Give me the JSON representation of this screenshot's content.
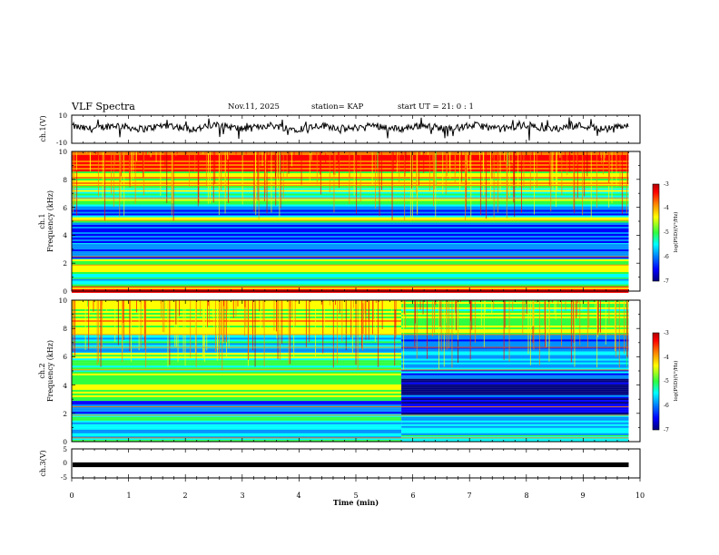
{
  "header": {
    "title": "VLF Spectra",
    "date": "Nov.11, 2025",
    "station": "station= KAP",
    "start_ut": "start  UT =   21: 0  : 1"
  },
  "colors": {
    "spectral": [
      "#00007a",
      "#0000ff",
      "#0090ff",
      "#00ffff",
      "#30ff40",
      "#ffff00",
      "#ff8000",
      "#ff0000",
      "#b00000"
    ],
    "trace": "#000000"
  },
  "chart_data": [
    {
      "type": "line",
      "name": "ch1-waveform",
      "ylabel": "ch.1(V)",
      "ylim": [
        -10,
        10
      ],
      "yticks": [
        "10",
        "-10"
      ],
      "x_range_min": [
        0,
        10
      ],
      "data_extent_min": [
        0,
        9.8
      ],
      "description_levels": {
        "mean": 1.5,
        "amplitude": 2.5
      }
    },
    {
      "type": "heatmap",
      "name": "ch1-spectrogram",
      "xlabel": "",
      "ylabel_channel": "ch.1",
      "ylabel": "Frequency (kHz)",
      "ylim_khz": [
        0,
        10
      ],
      "yticks": [
        "0",
        "2",
        "4",
        "6",
        "8",
        "10"
      ],
      "x_range_min": [
        0,
        10
      ],
      "data_extent_min": [
        0,
        9.8
      ],
      "log_psd_segments": [
        {
          "from_khz": 0,
          "to_khz": 0.4,
          "level": -4.2
        },
        {
          "from_khz": 0.4,
          "to_khz": 1.0,
          "level": -5.3
        },
        {
          "from_khz": 1.0,
          "to_khz": 2.4,
          "level": -5.0
        },
        {
          "from_khz": 2.4,
          "to_khz": 3.5,
          "level": -5.9
        },
        {
          "from_khz": 3.5,
          "to_khz": 5.0,
          "level": -6.1
        },
        {
          "from_khz": 5.0,
          "to_khz": 5.3,
          "level": -4.8
        },
        {
          "from_khz": 5.3,
          "to_khz": 6.2,
          "level": -5.8
        },
        {
          "from_khz": 6.2,
          "to_khz": 7.5,
          "level": -5.2
        },
        {
          "from_khz": 7.5,
          "to_khz": 8.7,
          "level": -4.6
        },
        {
          "from_khz": 8.7,
          "to_khz": 10,
          "level": -3.8
        }
      ],
      "colorbar": {
        "label": "log(PSD)(V²/Hz)",
        "range": [
          -7,
          -3
        ],
        "ticks": [
          "-3",
          "-4",
          "-5",
          "-6",
          "-7"
        ]
      }
    },
    {
      "type": "heatmap",
      "name": "ch2-spectrogram",
      "ylabel_channel": "ch.2",
      "ylabel": "Frequency (kHz)",
      "ylim_khz": [
        0,
        10
      ],
      "yticks": [
        "0",
        "2",
        "4",
        "6",
        "8",
        "10"
      ],
      "x_range_min": [
        0,
        10
      ],
      "data_extent_min": [
        0,
        9.8
      ],
      "regime_change_min": 5.8,
      "log_psd_segments_before": [
        {
          "from_khz": 0,
          "to_khz": 0.5,
          "level": -5.5
        },
        {
          "from_khz": 0.5,
          "to_khz": 2.0,
          "level": -5.6
        },
        {
          "from_khz": 2.0,
          "to_khz": 3.0,
          "level": -6.1
        },
        {
          "from_khz": 3.0,
          "to_khz": 5.2,
          "level": -4.9
        },
        {
          "from_khz": 5.2,
          "to_khz": 6.4,
          "level": -5.1
        },
        {
          "from_khz": 6.4,
          "to_khz": 7.6,
          "level": -5.6
        },
        {
          "from_khz": 7.6,
          "to_khz": 10,
          "level": -4.7
        }
      ],
      "log_psd_segments_after": [
        {
          "from_khz": 0,
          "to_khz": 0.5,
          "level": -5.6
        },
        {
          "from_khz": 0.5,
          "to_khz": 2.0,
          "level": -5.7
        },
        {
          "from_khz": 2.0,
          "to_khz": 3.2,
          "level": -6.4
        },
        {
          "from_khz": 3.2,
          "to_khz": 4.7,
          "level": -6.5
        },
        {
          "from_khz": 4.7,
          "to_khz": 5.6,
          "level": -6.0
        },
        {
          "from_khz": 5.6,
          "to_khz": 6.5,
          "level": -5.6
        },
        {
          "from_khz": 6.5,
          "to_khz": 7.6,
          "level": -5.9
        },
        {
          "from_khz": 7.6,
          "to_khz": 10,
          "level": -4.8
        }
      ],
      "colorbar": {
        "label": "log(PSD)(V²/Hz)",
        "range": [
          -7,
          -3
        ],
        "ticks": [
          "-3",
          "-4",
          "-5",
          "-6",
          "-7"
        ]
      }
    },
    {
      "type": "line",
      "name": "ch3-waveform",
      "ylabel": "ch.3(V)",
      "ylim": [
        -5,
        5
      ],
      "yticks": [
        "5",
        "0",
        "-5"
      ],
      "x_range_min": [
        0,
        10
      ],
      "data_extent_min": [
        0,
        9.8
      ],
      "band_v": [
        -0.35,
        0.35
      ],
      "xlabel": "Time  (min)",
      "xticks": [
        "0",
        "1",
        "2",
        "3",
        "4",
        "5",
        "6",
        "7",
        "8",
        "9",
        "10"
      ]
    }
  ]
}
